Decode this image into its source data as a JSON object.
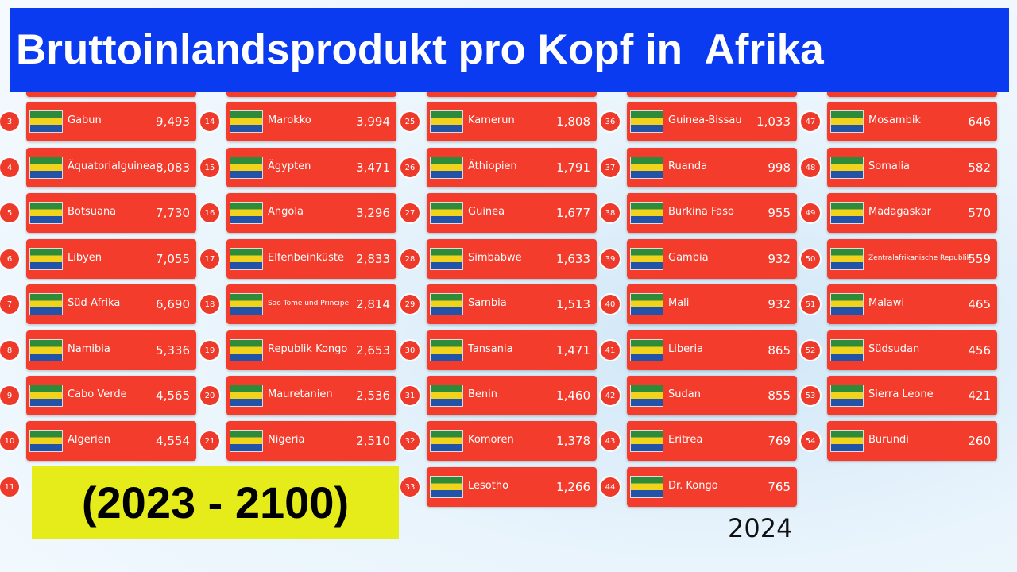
{
  "header": {
    "title": "Bruttoinlandsprodukt pro Kopf in  Afrika"
  },
  "subtitle": "(2023 - 2100)",
  "year": "2024",
  "columns": [
    {
      "entries": [
        {
          "rank": "3",
          "name": "Gabun",
          "value": "9,493"
        },
        {
          "rank": "4",
          "name": "Äquatorialguinea",
          "value": "8,083"
        },
        {
          "rank": "5",
          "name": "Botsuana",
          "value": "7,730"
        },
        {
          "rank": "6",
          "name": "Libyen",
          "value": "7,055"
        },
        {
          "rank": "7",
          "name": "Süd-Afrika",
          "value": "6,690"
        },
        {
          "rank": "8",
          "name": "Namibia",
          "value": "5,336"
        },
        {
          "rank": "9",
          "name": "Cabo Verde",
          "value": "4,565"
        },
        {
          "rank": "10",
          "name": "Algerien",
          "value": "4,554"
        },
        {
          "rank": "11"
        }
      ]
    },
    {
      "entries": [
        {
          "rank": "14",
          "name": "Marokko",
          "value": "3,994"
        },
        {
          "rank": "15",
          "name": "Ägypten",
          "value": "3,471"
        },
        {
          "rank": "16",
          "name": "Angola",
          "value": "3,296"
        },
        {
          "rank": "17",
          "name": "Elfenbeinküste",
          "value": "2,833"
        },
        {
          "rank": "18",
          "name": "Sao Tome und Principe",
          "value": "2,814"
        },
        {
          "rank": "19",
          "name": "Republik Kongo",
          "value": "2,653"
        },
        {
          "rank": "20",
          "name": "Mauretanien",
          "value": "2,536"
        },
        {
          "rank": "21",
          "name": "Nigeria",
          "value": "2,510"
        }
      ]
    },
    {
      "entries": [
        {
          "rank": "25",
          "name": "Kamerun",
          "value": "1,808"
        },
        {
          "rank": "26",
          "name": "Äthiopien",
          "value": "1,791"
        },
        {
          "rank": "27",
          "name": "Guinea",
          "value": "1,677"
        },
        {
          "rank": "28",
          "name": "Simbabwe",
          "value": "1,633"
        },
        {
          "rank": "29",
          "name": "Sambia",
          "value": "1,513"
        },
        {
          "rank": "30",
          "name": "Tansania",
          "value": "1,471"
        },
        {
          "rank": "31",
          "name": "Benin",
          "value": "1,460"
        },
        {
          "rank": "32",
          "name": "Komoren",
          "value": "1,378"
        },
        {
          "rank": "33",
          "name": "Lesotho",
          "value": "1,266"
        }
      ]
    },
    {
      "entries": [
        {
          "rank": "36",
          "name": "Guinea-Bissau",
          "value": "1,033"
        },
        {
          "rank": "37",
          "name": "Ruanda",
          "value": "998"
        },
        {
          "rank": "38",
          "name": "Burkina Faso",
          "value": "955"
        },
        {
          "rank": "39",
          "name": "Gambia",
          "value": "932"
        },
        {
          "rank": "40",
          "name": "Mali",
          "value": "932"
        },
        {
          "rank": "41",
          "name": "Liberia",
          "value": "865"
        },
        {
          "rank": "42",
          "name": "Sudan",
          "value": "855"
        },
        {
          "rank": "43",
          "name": "Eritrea",
          "value": "769"
        },
        {
          "rank": "44",
          "name": "Dr. Kongo",
          "value": "765"
        }
      ]
    },
    {
      "entries": [
        {
          "rank": "47",
          "name": "Mosambik",
          "value": "646"
        },
        {
          "rank": "48",
          "name": "Somalia",
          "value": "582"
        },
        {
          "rank": "49",
          "name": "Madagaskar",
          "value": "570"
        },
        {
          "rank": "50",
          "name": "Zentralafrikanische Republik",
          "value": "559"
        },
        {
          "rank": "51",
          "name": "Malawi",
          "value": "465"
        },
        {
          "rank": "52",
          "name": "Südsudan",
          "value": "456"
        },
        {
          "rank": "53",
          "name": "Sierra Leone",
          "value": "421"
        },
        {
          "rank": "54",
          "name": "Burundi",
          "value": "260"
        }
      ]
    }
  ]
}
